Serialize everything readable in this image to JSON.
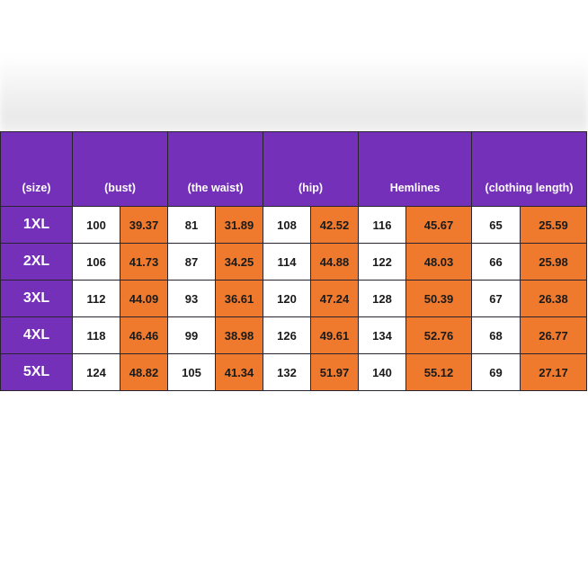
{
  "chart": {
    "headers": [
      "(size)",
      "(bust)",
      "(the waist)",
      "(hip)",
      "Hemlines",
      "(clothing length)"
    ],
    "rows": [
      {
        "size": "1XL",
        "values": [
          "100",
          "39.37",
          "81",
          "31.89",
          "108",
          "42.52",
          "116",
          "45.67",
          "65",
          "25.59"
        ]
      },
      {
        "size": "2XL",
        "values": [
          "106",
          "41.73",
          "87",
          "34.25",
          "114",
          "44.88",
          "122",
          "48.03",
          "66",
          "25.98"
        ]
      },
      {
        "size": "3XL",
        "values": [
          "112",
          "44.09",
          "93",
          "36.61",
          "120",
          "47.24",
          "128",
          "50.39",
          "67",
          "26.38"
        ]
      },
      {
        "size": "4XL",
        "values": [
          "118",
          "46.46",
          "99",
          "38.98",
          "126",
          "49.61",
          "134",
          "52.76",
          "68",
          "26.77"
        ]
      },
      {
        "size": "5XL",
        "values": [
          "124",
          "48.82",
          "105",
          "41.34",
          "132",
          "51.97",
          "140",
          "55.12",
          "69",
          "27.17"
        ]
      }
    ]
  },
  "colors": {
    "header_purple": "#7430b8",
    "inch_orange": "#ef7a2d",
    "cm_white": "#ffffff"
  }
}
